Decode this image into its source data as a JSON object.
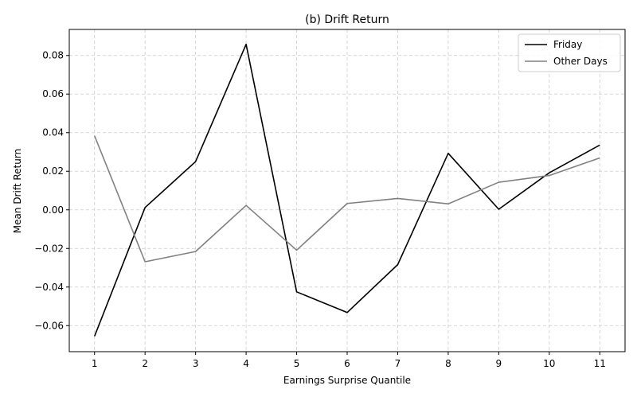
{
  "chart_data": {
    "type": "line",
    "title": "(b) Drift Return",
    "xlabel": "Earnings Surprise Quantile",
    "ylabel": "Mean Drift Return",
    "x": [
      1,
      2,
      3,
      4,
      5,
      6,
      7,
      8,
      9,
      10,
      11
    ],
    "xlim": [
      0.5,
      11.5
    ],
    "ylim": [
      -0.0735,
      0.0935
    ],
    "yticks": [
      -0.06,
      -0.04,
      -0.02,
      0.0,
      0.02,
      0.04,
      0.06,
      0.08
    ],
    "ytick_labels": [
      "−0.06",
      "−0.04",
      "−0.02",
      "0.00",
      "0.02",
      "0.04",
      "0.06",
      "0.08"
    ],
    "grid": true,
    "legend_position": "top-right",
    "series": [
      {
        "name": "Friday",
        "color": "#000000",
        "values": [
          -0.0655,
          0.0012,
          0.025,
          0.0858,
          -0.0425,
          -0.0532,
          -0.0284,
          0.0293,
          0.0003,
          0.0192,
          0.0336
        ]
      },
      {
        "name": "Other Days",
        "color": "#808080",
        "values": [
          0.0384,
          -0.0269,
          -0.0216,
          0.0023,
          -0.0209,
          0.0033,
          0.0059,
          0.0031,
          0.0143,
          0.0178,
          0.0269
        ]
      }
    ]
  }
}
